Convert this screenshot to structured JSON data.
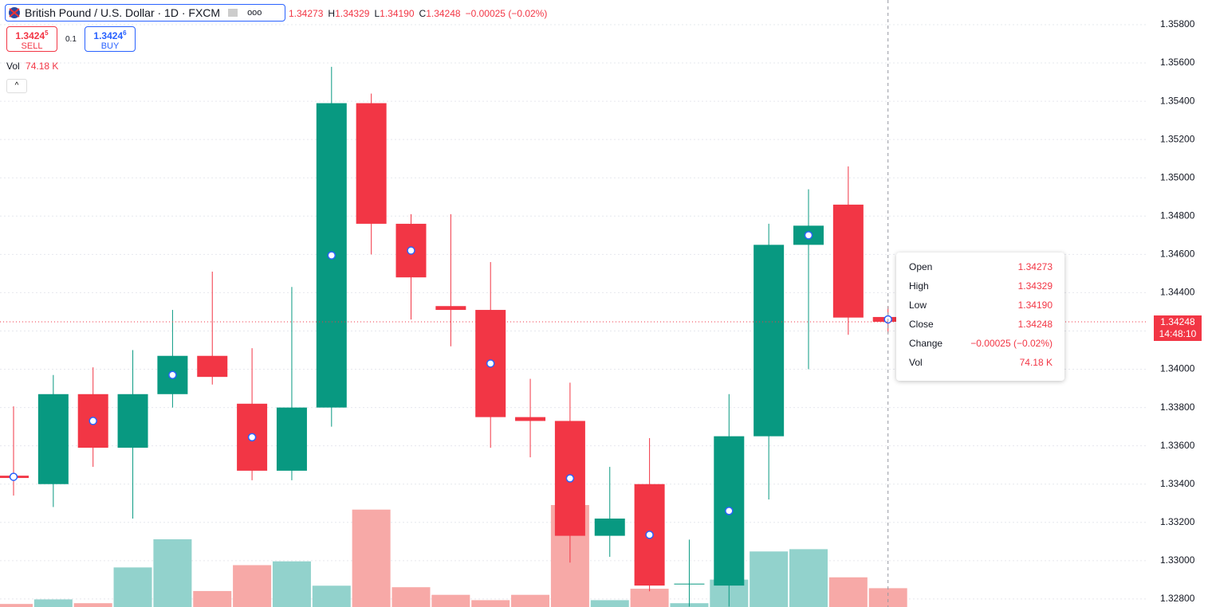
{
  "header": {
    "symbol": "British Pound / U.S. Dollar · 1D · FXCM",
    "open": "1.34273",
    "high_label": "H",
    "high": "1.34329",
    "low_label": "L",
    "low": "1.34190",
    "close_label": "C",
    "close": "1.34248",
    "change": "−0.00025 (−0.02%)"
  },
  "trade": {
    "sell_price": "1.3424",
    "sell_pip": "5",
    "sell_label": "SELL",
    "spread": "0.1",
    "buy_price": "1.3424",
    "buy_pip": "6",
    "buy_label": "BUY"
  },
  "volume_legend": {
    "label": "Vol",
    "value": "74.18 K"
  },
  "tooltip": {
    "rows": [
      [
        "Open",
        "1.34273"
      ],
      [
        "High",
        "1.34329"
      ],
      [
        "Low",
        "1.34190"
      ],
      [
        "Close",
        "1.34248"
      ],
      [
        "Change",
        "−0.00025 (−0.02%)"
      ],
      [
        "Vol",
        "74.18 K"
      ]
    ]
  },
  "price_tag": {
    "price": "1.34248",
    "countdown": "14:48:10"
  },
  "chart_data": {
    "type": "candlestick",
    "up_color": "#089981",
    "down_color": "#f23645",
    "up_volume_color": "#92d2cc",
    "down_volume_color": "#f7a9a7",
    "open": [
      1.33444,
      1.334,
      1.3387,
      1.3359,
      1.3387,
      1.3407,
      1.3382,
      1.3347,
      1.338,
      1.3539,
      1.3476,
      1.3433,
      1.3431,
      1.3375,
      1.3373,
      1.3313,
      1.334,
      1.3288,
      1.3287,
      1.3365,
      1.3465,
      1.3486,
      1.34273
    ],
    "high": [
      1.33806,
      1.3397,
      1.3401,
      1.341,
      1.3431,
      1.3451,
      1.3411,
      1.3443,
      1.3558,
      1.3544,
      1.3481,
      1.3481,
      1.3456,
      1.3395,
      1.3393,
      1.3349,
      1.3364,
      1.3311,
      1.3387,
      1.3476,
      1.3494,
      1.3506,
      1.34329
    ],
    "low": [
      1.3334,
      1.3328,
      1.3349,
      1.3322,
      1.338,
      1.3392,
      1.3342,
      1.3342,
      1.337,
      1.346,
      1.3426,
      1.3412,
      1.3359,
      1.3354,
      1.3299,
      1.3302,
      1.3284,
      1.3276,
      1.3276,
      1.3332,
      1.34,
      1.3418,
      1.3419
    ],
    "close": [
      1.33432,
      1.3387,
      1.3359,
      1.3387,
      1.3407,
      1.3396,
      1.3347,
      1.338,
      1.3539,
      1.3476,
      1.3448,
      1.3431,
      1.3375,
      1.3373,
      1.3313,
      1.3322,
      1.3287,
      1.3288,
      1.3365,
      1.3465,
      1.3475,
      1.3427,
      1.34248
    ],
    "volume": [
      12,
      30,
      15,
      156,
      267,
      63,
      165,
      180,
      84,
      384,
      78,
      48,
      27,
      48,
      402,
      27,
      72,
      15,
      108,
      219,
      228,
      117,
      74.18
    ],
    "ylim": [
      1.32758,
      1.35929
    ],
    "yticks": [
      {
        "value": 1.358,
        "label": "1.35800"
      },
      {
        "value": 1.356,
        "label": "1.35600"
      },
      {
        "value": 1.354,
        "label": "1.35400"
      },
      {
        "value": 1.352,
        "label": "1.35200"
      },
      {
        "value": 1.35,
        "label": "1.35000"
      },
      {
        "value": 1.348,
        "label": "1.34800"
      },
      {
        "value": 1.346,
        "label": "1.34600"
      },
      {
        "value": 1.344,
        "label": "1.34400"
      },
      {
        "value": 1.342,
        "label": "1.34200"
      },
      {
        "value": 1.34,
        "label": "1.34000"
      },
      {
        "value": 1.338,
        "label": "1.33800"
      },
      {
        "value": 1.336,
        "label": "1.33600"
      },
      {
        "value": 1.334,
        "label": "1.33400"
      },
      {
        "value": 1.332,
        "label": "1.33200"
      },
      {
        "value": 1.33,
        "label": "1.33000"
      },
      {
        "value": 1.328,
        "label": "1.32800"
      }
    ],
    "crosshair_price": 1.34248,
    "grid": true
  }
}
